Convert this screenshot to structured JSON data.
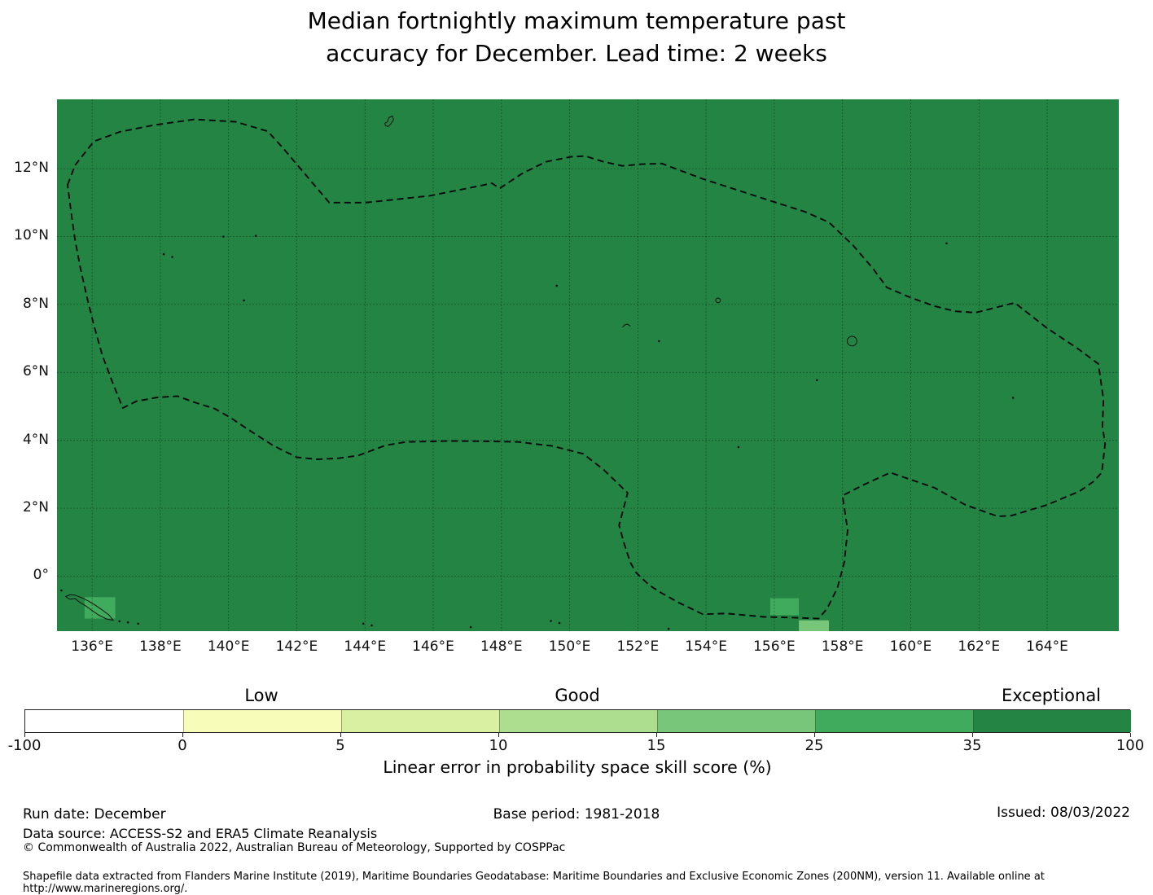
{
  "title": {
    "line1": "Median fortnightly maximum temperature past",
    "line2": "accuracy for December. Lead time: 2 weeks"
  },
  "chart_data": {
    "type": "heatmap",
    "description": "Filled geographic map of LEPS skill score over the western Pacific; nearly the whole exclusive-economic-zone region is in the 35-100 (Exceptional, dark green) class, with three grid cells of lower skill near the bottom of the map.",
    "map": {
      "extent": {
        "lon_min": 134.97,
        "lon_max": 166.1,
        "lat_min": -1.62,
        "lat_max": 14.04
      },
      "base_color": "#238443",
      "base_value_bin": "35-100",
      "grid_color": "rgba(0,0,0,0.38)",
      "xticks": [
        [
          136,
          "136°E"
        ],
        [
          138,
          "138°E"
        ],
        [
          140,
          "140°E"
        ],
        [
          142,
          "142°E"
        ],
        [
          144,
          "144°E"
        ],
        [
          146,
          "146°E"
        ],
        [
          148,
          "148°E"
        ],
        [
          150,
          "150°E"
        ],
        [
          152,
          "152°E"
        ],
        [
          154,
          "154°E"
        ],
        [
          156,
          "156°E"
        ],
        [
          158,
          "158°E"
        ],
        [
          160,
          "160°E"
        ],
        [
          162,
          "162°E"
        ],
        [
          164,
          "164°E"
        ]
      ],
      "yticks": [
        [
          12,
          "12°N"
        ],
        [
          10,
          "10°N"
        ],
        [
          8,
          "8°N"
        ],
        [
          6,
          "6°N"
        ],
        [
          4,
          "4°N"
        ],
        [
          2,
          "2°N"
        ],
        [
          0,
          "0°"
        ]
      ],
      "grid_lats": [
        0,
        2,
        4,
        6,
        8,
        10,
        12
      ],
      "anomaly_cells": [
        {
          "lon0": 135.78,
          "lon1": 136.68,
          "lat0": -0.62,
          "lat1": -1.25,
          "bin": "25-35",
          "color": "#41ab5d"
        },
        {
          "lon0": 155.88,
          "lon1": 156.72,
          "lat0": -0.65,
          "lat1": -1.15,
          "bin": "25-35",
          "color": "#41ab5d"
        },
        {
          "lon0": 156.72,
          "lon1": 157.6,
          "lat0": -1.3,
          "lat1": -1.62,
          "bin": "15-25",
          "color": "#78c679"
        }
      ],
      "eez_boundary": [
        [
          135.28,
          11.52
        ],
        [
          135.5,
          12.1
        ],
        [
          136.05,
          12.8
        ],
        [
          136.8,
          13.08
        ],
        [
          137.8,
          13.28
        ],
        [
          139.0,
          13.45
        ],
        [
          140.2,
          13.38
        ],
        [
          141.15,
          13.1
        ],
        [
          141.6,
          12.6
        ],
        [
          142.95,
          11.0
        ],
        [
          144.0,
          11.0
        ],
        [
          144.5,
          11.05
        ],
        [
          145.9,
          11.2
        ],
        [
          147.4,
          11.5
        ],
        [
          147.72,
          11.57
        ],
        [
          147.95,
          11.42
        ],
        [
          148.6,
          11.85
        ],
        [
          149.3,
          12.2
        ],
        [
          150.05,
          12.35
        ],
        [
          150.45,
          12.37
        ],
        [
          151.0,
          12.2
        ],
        [
          151.55,
          12.08
        ],
        [
          152.1,
          12.13
        ],
        [
          152.7,
          12.15
        ],
        [
          153.9,
          11.7
        ],
        [
          155.9,
          11.05
        ],
        [
          156.9,
          10.73
        ],
        [
          157.6,
          10.42
        ],
        [
          158.3,
          9.75
        ],
        [
          158.9,
          9.05
        ],
        [
          159.3,
          8.5
        ],
        [
          160.0,
          8.2
        ],
        [
          160.7,
          7.95
        ],
        [
          161.3,
          7.8
        ],
        [
          161.9,
          7.76
        ],
        [
          163.05,
          8.05
        ],
        [
          164.0,
          7.3
        ],
        [
          164.9,
          6.7
        ],
        [
          165.5,
          6.25
        ],
        [
          165.65,
          5.2
        ],
        [
          165.62,
          4.4
        ],
        [
          165.7,
          3.9
        ],
        [
          165.6,
          3.05
        ],
        [
          165.35,
          2.78
        ],
        [
          164.95,
          2.5
        ],
        [
          164.0,
          2.1
        ],
        [
          162.95,
          1.78
        ],
        [
          162.55,
          1.76
        ],
        [
          161.6,
          2.1
        ],
        [
          160.7,
          2.6
        ],
        [
          159.95,
          2.86
        ],
        [
          159.4,
          3.05
        ],
        [
          158.6,
          2.68
        ],
        [
          158.0,
          2.37
        ],
        [
          158.15,
          1.35
        ],
        [
          158.05,
          0.4
        ],
        [
          157.85,
          -0.35
        ],
        [
          157.55,
          -0.95
        ],
        [
          157.3,
          -1.25
        ],
        [
          156.5,
          -1.22
        ],
        [
          155.7,
          -1.2
        ],
        [
          154.6,
          -1.1
        ],
        [
          153.9,
          -1.12
        ],
        [
          153.2,
          -0.78
        ],
        [
          152.7,
          -0.5
        ],
        [
          152.35,
          -0.28
        ],
        [
          151.95,
          0.1
        ],
        [
          151.78,
          0.4
        ],
        [
          151.6,
          0.95
        ],
        [
          151.45,
          1.5
        ],
        [
          151.7,
          2.45
        ],
        [
          151.0,
          3.13
        ],
        [
          150.4,
          3.6
        ],
        [
          149.5,
          3.83
        ],
        [
          148.5,
          3.95
        ],
        [
          147.6,
          3.97
        ],
        [
          146.5,
          3.98
        ],
        [
          145.2,
          3.95
        ],
        [
          144.6,
          3.85
        ],
        [
          143.8,
          3.55
        ],
        [
          143.2,
          3.47
        ],
        [
          142.6,
          3.44
        ],
        [
          142.0,
          3.5
        ],
        [
          141.3,
          3.85
        ],
        [
          140.6,
          4.3
        ],
        [
          140.05,
          4.67
        ],
        [
          139.6,
          4.93
        ],
        [
          139.0,
          5.12
        ],
        [
          138.5,
          5.3
        ],
        [
          137.9,
          5.26
        ],
        [
          137.3,
          5.15
        ],
        [
          136.9,
          4.95
        ],
        [
          136.6,
          5.7
        ],
        [
          136.3,
          6.5
        ],
        [
          136.05,
          7.4
        ],
        [
          135.85,
          8.2
        ],
        [
          135.65,
          9.1
        ],
        [
          135.5,
          9.9
        ],
        [
          135.4,
          10.6
        ],
        [
          135.28,
          11.52
        ]
      ],
      "islands": [
        {
          "name": "guam",
          "type": "poly",
          "closed": true,
          "pts": [
            [
              144.6,
              13.27
            ],
            [
              144.68,
              13.24
            ],
            [
              144.75,
              13.31
            ],
            [
              144.84,
              13.44
            ],
            [
              144.8,
              13.55
            ],
            [
              144.7,
              13.5
            ],
            [
              144.66,
              13.38
            ],
            [
              144.58,
              13.33
            ]
          ]
        },
        {
          "name": "png-islands",
          "type": "poly",
          "closed": false,
          "pts": [
            [
              135.22,
              -0.6
            ],
            [
              135.35,
              -0.68
            ],
            [
              135.5,
              -0.66
            ],
            [
              135.62,
              -0.76
            ],
            [
              135.8,
              -0.87
            ],
            [
              135.98,
              -1.0
            ],
            [
              136.18,
              -1.14
            ],
            [
              136.42,
              -1.26
            ],
            [
              136.62,
              -1.3
            ],
            [
              136.5,
              -1.15
            ],
            [
              136.3,
              -1.0
            ],
            [
              136.1,
              -0.86
            ],
            [
              135.9,
              -0.74
            ],
            [
              135.7,
              -0.64
            ],
            [
              135.5,
              -0.56
            ],
            [
              135.35,
              -0.55
            ],
            [
              135.22,
              -0.6
            ]
          ]
        },
        {
          "name": "chuuk",
          "type": "poly",
          "closed": false,
          "pts": [
            [
              151.55,
              7.33
            ],
            [
              151.62,
              7.4
            ],
            [
              151.7,
              7.42
            ],
            [
              151.78,
              7.36
            ]
          ]
        },
        {
          "name": "pohnpei",
          "type": "circle",
          "c": [
            158.28,
            6.92
          ],
          "r": 0.14
        },
        {
          "name": "nomwin",
          "type": "circle",
          "c": [
            154.35,
            8.12
          ],
          "r": 0.07
        }
      ],
      "island_dots": [
        [
          163.0,
          5.25
        ],
        [
          138.1,
          9.48
        ],
        [
          138.35,
          9.4
        ],
        [
          149.62,
          8.55
        ],
        [
          152.62,
          6.92
        ],
        [
          157.25,
          5.77
        ],
        [
          154.95,
          3.8
        ],
        [
          139.85,
          10.0
        ],
        [
          140.8,
          10.02
        ],
        [
          140.45,
          8.12
        ],
        [
          161.05,
          9.8
        ],
        [
          149.45,
          -1.32
        ],
        [
          149.7,
          -1.38
        ],
        [
          144.2,
          -1.45
        ],
        [
          143.95,
          -1.4
        ],
        [
          136.8,
          -1.33
        ],
        [
          137.05,
          -1.36
        ],
        [
          137.35,
          -1.4
        ],
        [
          135.1,
          -0.42
        ],
        [
          152.9,
          -1.55
        ],
        [
          147.1,
          -1.5
        ]
      ]
    },
    "colorbar": {
      "orientation": "horizontal",
      "ticks": [
        -100,
        0,
        5,
        10,
        15,
        25,
        35,
        100
      ],
      "tick_labels": [
        "-100",
        "0",
        "5",
        "10",
        "15",
        "25",
        "35",
        "100"
      ],
      "colors": [
        "#ffffff",
        "#f7fcb9",
        "#d9f0a3",
        "#addd8e",
        "#78c679",
        "#41ab5d",
        "#238443"
      ],
      "class_labels": [
        {
          "text": "Low",
          "segment": 1
        },
        {
          "text": "Good",
          "segment": 3
        },
        {
          "text": "Exceptional",
          "segment": 6
        }
      ],
      "caption": "Linear error in probability space skill score (%)"
    }
  },
  "footer": {
    "run_date": "Run date: December",
    "base_period": "Base period: 1981-2018",
    "issued": "Issued: 08/03/2022",
    "data_source": "Data source: ACCESS-S2 and ERA5 Climate Reanalysis",
    "copyright": "© Commonwealth of Australia 2022, Australian Bureau of Meteorology, Supported by COSPPac",
    "shapefile_note": "Shapefile data extracted from Flanders Marine Institute (2019), Maritime Boundaries Geodatabase: Maritime Boundaries and Exclusive Economic Zones (200NM), version 11. Available online at http://www.marineregions.org/."
  }
}
